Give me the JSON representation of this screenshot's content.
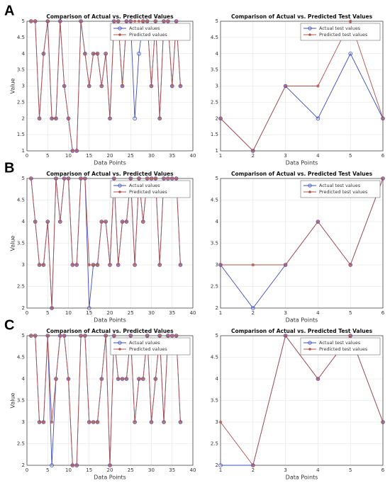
{
  "chart_data": [
    {
      "type": "line",
      "panel": "A",
      "title": "Comparison of Actual vs. Predicted Values",
      "xlabel": "Data Points",
      "ylabel": "Value",
      "x": [
        1,
        2,
        3,
        4,
        5,
        6,
        7,
        8,
        9,
        10,
        11,
        12,
        13,
        14,
        15,
        16,
        17,
        18,
        19,
        20,
        21,
        22,
        23,
        24,
        25,
        26,
        27,
        28,
        29,
        30,
        31,
        32,
        33,
        34,
        35,
        36,
        37
      ],
      "series": [
        {
          "name": "Actual values",
          "color": "#3b4cc0",
          "marker": "circle",
          "values": [
            5,
            5,
            2,
            4,
            5,
            2,
            2,
            5,
            3,
            2,
            1,
            1,
            5,
            4,
            3,
            4,
            4,
            3,
            4,
            2,
            5,
            5,
            3,
            5,
            5,
            2,
            4,
            5,
            5,
            3,
            5,
            2,
            5,
            5,
            3,
            5,
            3
          ]
        },
        {
          "name": "Predicted values",
          "color": "#b0524a",
          "marker": "dot",
          "values": [
            5,
            5,
            2,
            4,
            5,
            2,
            2,
            5,
            3,
            2,
            1,
            1,
            5,
            4,
            3,
            4,
            4,
            3,
            4,
            2,
            5,
            5,
            3,
            5,
            5,
            5,
            5,
            5,
            5,
            3,
            5,
            2,
            5,
            5,
            3,
            5,
            3
          ]
        }
      ],
      "xlim": [
        0,
        40
      ],
      "xticks": [
        0,
        5,
        10,
        15,
        20,
        25,
        30,
        35,
        40
      ],
      "ylim": [
        1,
        5
      ],
      "yticks": [
        1,
        1.5,
        2,
        2.5,
        3,
        3.5,
        4,
        4.5,
        5
      ],
      "grid": true,
      "legend": "upper right"
    },
    {
      "type": "line",
      "title": "Comparison of Actual vs. Predicted Test Values",
      "xlabel": "Data Points",
      "x": [
        1,
        2,
        3,
        4,
        5,
        6
      ],
      "series": [
        {
          "name": "Actual test values",
          "color": "#3b4cc0",
          "marker": "circle",
          "values": [
            2,
            1,
            3,
            2,
            4,
            2
          ]
        },
        {
          "name": "Predicted test values",
          "color": "#b0524a",
          "marker": "dot",
          "values": [
            2,
            1,
            3,
            3,
            5,
            2
          ]
        }
      ],
      "xlim": [
        1,
        6
      ],
      "xticks": [
        1,
        2,
        3,
        4,
        5,
        6
      ],
      "ylim": [
        1,
        5
      ],
      "yticks": [
        1,
        1.5,
        2,
        2.5,
        3,
        3.5,
        4,
        4.5,
        5
      ],
      "grid": true,
      "legend": "upper right"
    },
    {
      "type": "line",
      "panel": "B",
      "title": "Comparison of Actual vs. Predicted Values",
      "xlabel": "Data Points",
      "ylabel": "Value",
      "x": [
        1,
        2,
        3,
        4,
        5,
        6,
        7,
        8,
        9,
        10,
        11,
        12,
        13,
        14,
        15,
        16,
        17,
        18,
        19,
        20,
        21,
        22,
        23,
        24,
        25,
        26,
        27,
        28,
        29,
        30,
        31,
        32,
        33,
        34,
        35,
        36,
        37
      ],
      "series": [
        {
          "name": "Actual values",
          "color": "#3b4cc0",
          "marker": "circle",
          "values": [
            5,
            4,
            3,
            3,
            4,
            2,
            5,
            4,
            5,
            5,
            3,
            3,
            5,
            5,
            2,
            3,
            3,
            4,
            4,
            3,
            5,
            3,
            4,
            4,
            5,
            3,
            5,
            4,
            5,
            5,
            5,
            3,
            5,
            5,
            5,
            5,
            3
          ]
        },
        {
          "name": "Predicted values",
          "color": "#b0524a",
          "marker": "dot",
          "values": [
            5,
            4,
            3,
            3,
            4,
            2,
            5,
            4,
            5,
            5,
            3,
            3,
            5,
            5,
            3,
            3,
            3,
            4,
            4,
            3,
            5,
            3,
            4,
            4,
            5,
            3,
            5,
            4,
            5,
            5,
            5,
            3,
            5,
            5,
            5,
            5,
            3
          ]
        }
      ],
      "xlim": [
        0,
        40
      ],
      "xticks": [
        0,
        5,
        10,
        15,
        20,
        25,
        30,
        35,
        40
      ],
      "ylim": [
        2,
        5
      ],
      "yticks": [
        2,
        2.5,
        3,
        3.5,
        4,
        4.5,
        5
      ],
      "grid": true,
      "legend": "upper right"
    },
    {
      "type": "line",
      "title": "Comparison of Actual vs. Predicted Test Values",
      "xlabel": "Data Points",
      "x": [
        1,
        2,
        3,
        4,
        5,
        6
      ],
      "series": [
        {
          "name": "Actual test values",
          "color": "#3b4cc0",
          "marker": "circle",
          "values": [
            3,
            2,
            3,
            4,
            3,
            5
          ]
        },
        {
          "name": "Predicted test values",
          "color": "#b0524a",
          "marker": "dot",
          "values": [
            3,
            3,
            3,
            4,
            3,
            5
          ]
        }
      ],
      "xlim": [
        1,
        6
      ],
      "xticks": [
        1,
        2,
        3,
        4,
        5,
        6
      ],
      "ylim": [
        2,
        5
      ],
      "yticks": [
        2,
        2.5,
        3,
        3.5,
        4,
        4.5,
        5
      ],
      "grid": true,
      "legend": "upper right"
    },
    {
      "type": "line",
      "panel": "C",
      "title": "Comparison of Actual vs. Predicted Values",
      "xlabel": "Data Points",
      "ylabel": "Value",
      "x": [
        1,
        2,
        3,
        4,
        5,
        6,
        7,
        8,
        9,
        10,
        11,
        12,
        13,
        14,
        15,
        16,
        17,
        18,
        19,
        20,
        21,
        22,
        23,
        24,
        25,
        26,
        27,
        28,
        29,
        30,
        31,
        32,
        33,
        34,
        35,
        36,
        37
      ],
      "series": [
        {
          "name": "Actual values",
          "color": "#3b4cc0",
          "marker": "circle",
          "values": [
            5,
            5,
            3,
            3,
            5,
            2,
            4,
            5,
            5,
            4,
            2,
            2,
            5,
            5,
            3,
            3,
            3,
            4,
            5,
            2,
            5,
            4,
            4,
            4,
            5,
            3,
            4,
            4,
            5,
            3,
            4,
            5,
            3,
            5,
            5,
            5,
            3
          ]
        },
        {
          "name": "Predicted values",
          "color": "#b0524a",
          "marker": "dot",
          "values": [
            5,
            5,
            3,
            3,
            5,
            3,
            4,
            5,
            5,
            4,
            2,
            2,
            5,
            5,
            3,
            3,
            3,
            4,
            5,
            2,
            5,
            4,
            4,
            4,
            5,
            3,
            4,
            4,
            5,
            3,
            4,
            5,
            3,
            5,
            5,
            5,
            3
          ]
        }
      ],
      "xlim": [
        0,
        40
      ],
      "xticks": [
        0,
        5,
        10,
        15,
        20,
        25,
        30,
        35,
        40
      ],
      "ylim": [
        2,
        5
      ],
      "yticks": [
        2,
        2.5,
        3,
        3.5,
        4,
        4.5,
        5
      ],
      "grid": true,
      "legend": "upper right"
    },
    {
      "type": "line",
      "title": "Comparison of Actual vs. Predicted Test Values",
      "xlabel": "Data Points",
      "x": [
        1,
        2,
        3,
        4,
        5,
        6
      ],
      "series": [
        {
          "name": "Actual test values",
          "color": "#3b4cc0",
          "marker": "circle",
          "values": [
            2,
            2,
            5,
            4,
            5,
            3
          ]
        },
        {
          "name": "Predicted test values",
          "color": "#b0524a",
          "marker": "dot",
          "values": [
            3,
            2,
            5,
            4,
            5,
            3
          ]
        }
      ],
      "xlim": [
        1,
        6
      ],
      "xticks": [
        1,
        2,
        3,
        4,
        5,
        6
      ],
      "ylim": [
        2,
        5
      ],
      "yticks": [
        2,
        2.5,
        3,
        3.5,
        4,
        4.5,
        5
      ],
      "grid": true,
      "legend": "upper right"
    }
  ]
}
